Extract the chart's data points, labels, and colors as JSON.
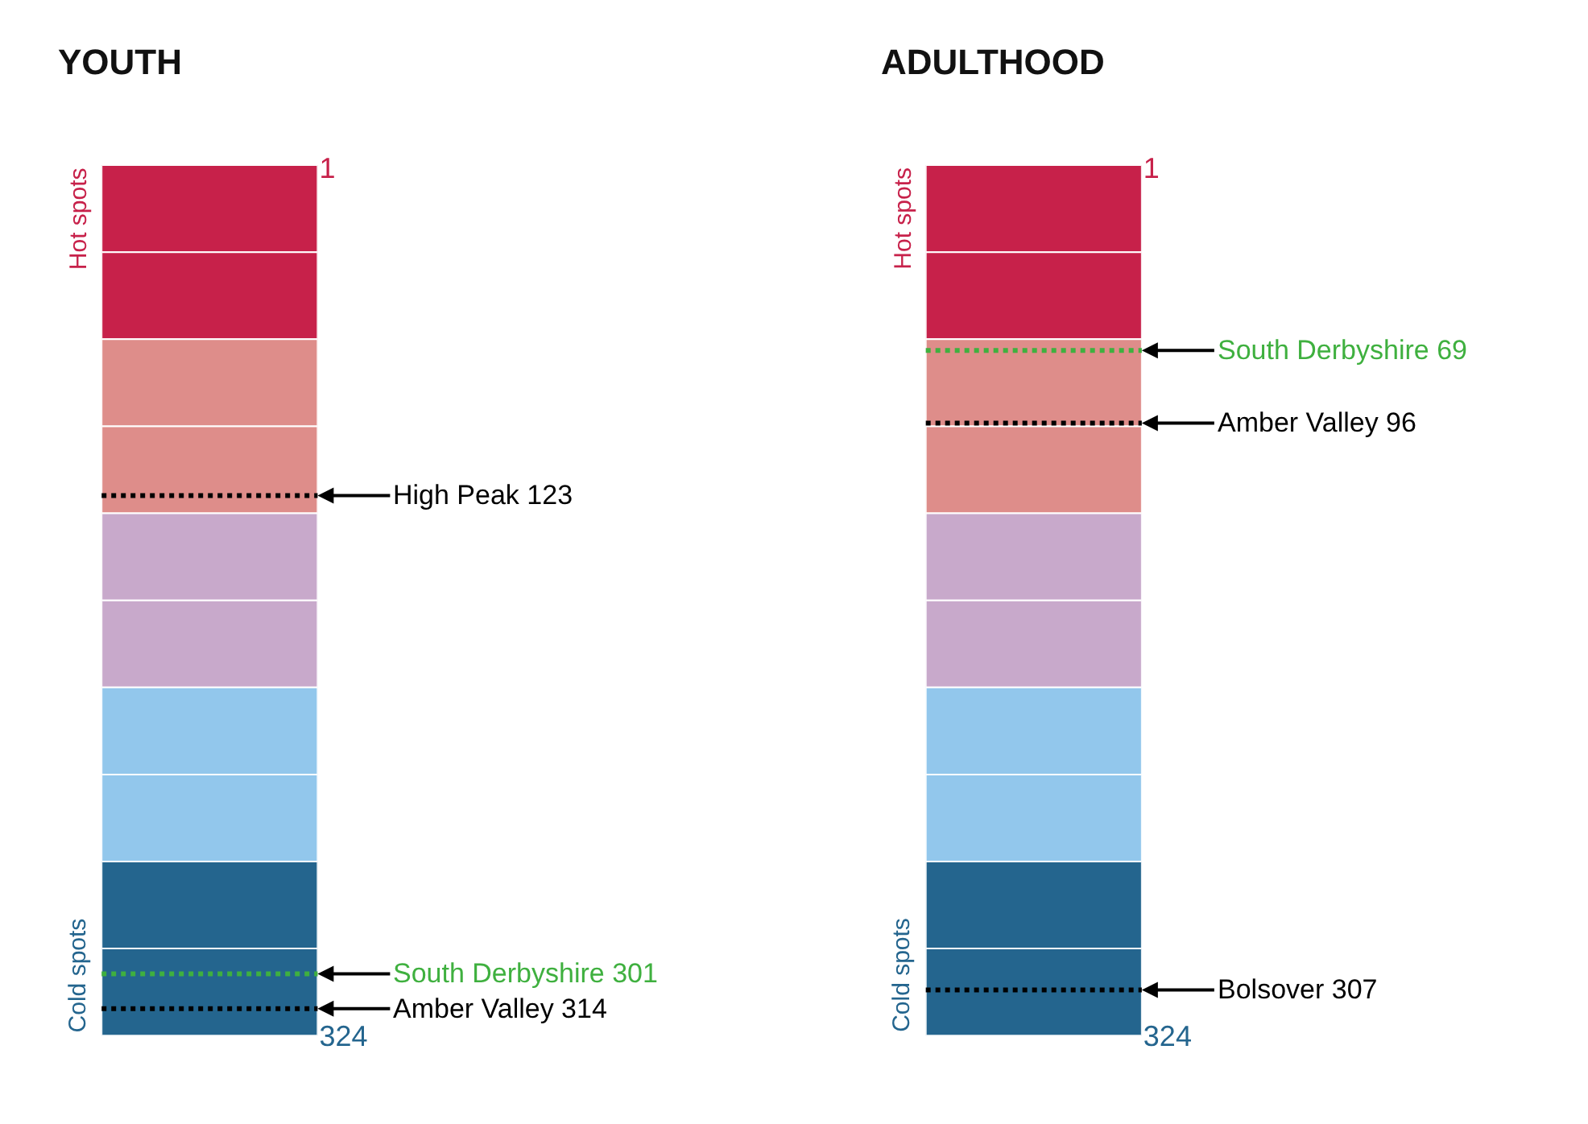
{
  "chart_data": [
    {
      "type": "bar",
      "title": "YOUTH",
      "stacked": true,
      "categories": [
        null
      ],
      "ylim": [
        324,
        0
      ],
      "yticks": [
        1,
        324
      ],
      "series": [
        {
          "color": "#c7214a",
          "values": [
            32.4
          ]
        },
        {
          "color": "#c7214a",
          "values": [
            32.4
          ]
        },
        {
          "color": "#de8d8a",
          "values": [
            32.4
          ]
        },
        {
          "color": "#de8d8a",
          "values": [
            32.4
          ]
        },
        {
          "color": "#c8a9cb",
          "values": [
            32.4
          ]
        },
        {
          "color": "#c8a9cb",
          "values": [
            32.4
          ]
        },
        {
          "color": "#92c7ec",
          "values": [
            32.4
          ]
        },
        {
          "color": "#92c7ec",
          "values": [
            32.4
          ]
        },
        {
          "color": "#24658e",
          "values": [
            32.4
          ]
        },
        {
          "color": "#24658e",
          "values": [
            32.4
          ]
        }
      ],
      "ref_lines": [
        {
          "axis": "y",
          "value": 123,
          "label": "High Peak 123",
          "color": "#000000",
          "line_style": "dotted"
        },
        {
          "axis": "y",
          "value": 301,
          "label": "South Derbyshire 301",
          "color": "#3fb03f",
          "line_style": "dotted"
        },
        {
          "axis": "y",
          "value": 314,
          "label": "Amber Valley 314",
          "color": "#000000",
          "line_style": "dotted"
        }
      ],
      "annotations": [
        "Hot spots",
        "Cold spots"
      ]
    },
    {
      "type": "bar",
      "title": "ADULTHOOD",
      "stacked": true,
      "categories": [
        null
      ],
      "ylim": [
        324,
        0
      ],
      "yticks": [
        1,
        324
      ],
      "series": [
        {
          "color": "#c7214a",
          "values": [
            32.4
          ]
        },
        {
          "color": "#c7214a",
          "values": [
            32.4
          ]
        },
        {
          "color": "#de8d8a",
          "values": [
            32.4
          ]
        },
        {
          "color": "#de8d8a",
          "values": [
            32.4
          ]
        },
        {
          "color": "#c8a9cb",
          "values": [
            32.4
          ]
        },
        {
          "color": "#c8a9cb",
          "values": [
            32.4
          ]
        },
        {
          "color": "#92c7ec",
          "values": [
            32.4
          ]
        },
        {
          "color": "#92c7ec",
          "values": [
            32.4
          ]
        },
        {
          "color": "#24658e",
          "values": [
            32.4
          ]
        },
        {
          "color": "#24658e",
          "values": [
            32.4
          ]
        }
      ],
      "ref_lines": [
        {
          "axis": "y",
          "value": 69,
          "label": "South Derbyshire 69",
          "color": "#3fb03f",
          "line_style": "dotted"
        },
        {
          "axis": "y",
          "value": 96,
          "label": "Amber Valley 96",
          "color": "#000000",
          "line_style": "dotted"
        },
        {
          "axis": "y",
          "value": 307,
          "label": "Bolsover 307",
          "color": "#000000",
          "line_style": "dotted"
        }
      ],
      "annotations": [
        "Hot spots",
        "Cold spots"
      ]
    }
  ]
}
